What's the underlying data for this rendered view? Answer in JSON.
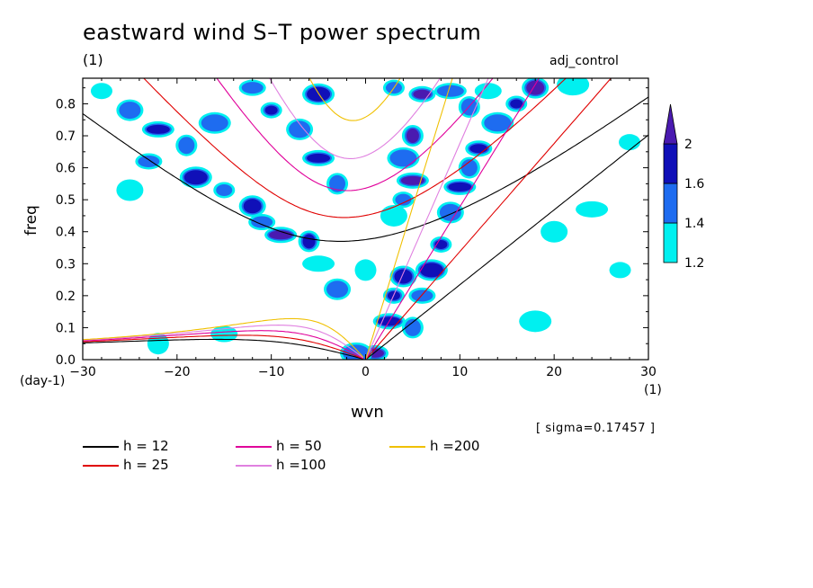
{
  "chart_data": {
    "type": "heatmap",
    "title": "eastward wind S–T power spectrum",
    "subtitle": "(1)",
    "run_label": "adj_control",
    "xlabel": "wvn",
    "xlabel_unit": "(1)",
    "ylabel": "freq",
    "ylabel_unit": "(day-1)",
    "annotation": "[ sigma=0.17457 ]",
    "xlim": [
      -30,
      30
    ],
    "ylim": [
      0,
      0.88
    ],
    "x_ticks": [
      -30,
      -20,
      -10,
      0,
      10,
      20,
      30
    ],
    "x_tick_labels": [
      "−30",
      "−20",
      "−10",
      "0",
      "10",
      "20",
      "30"
    ],
    "y_ticks": [
      0,
      0.1,
      0.2,
      0.3,
      0.4,
      0.5,
      0.6,
      0.7,
      0.8
    ],
    "y_tick_labels": [
      "0.0",
      "0.1",
      "0.2",
      "0.3",
      "0.4",
      "0.5",
      "0.6",
      "0.7",
      "0.8"
    ],
    "colorbar": {
      "levels": [
        1.2,
        1.4,
        1.6,
        2
      ],
      "level_labels": [
        "1.2",
        "1.4",
        "1.6",
        "2"
      ],
      "colors": [
        "#00f0f0",
        "#1e6cf0",
        "#1010b8",
        "#4a1ab0"
      ]
    },
    "series": [
      {
        "name": "h = 12",
        "color": "#000000",
        "h": 12
      },
      {
        "name": "h = 25",
        "color": "#e00000",
        "h": 25
      },
      {
        "name": "h = 50",
        "color": "#e0009a",
        "h": 50
      },
      {
        "name": "h =100",
        "color": "#e080e0",
        "h": 100
      },
      {
        "name": "h =200",
        "color": "#f0c000",
        "h": 200
      }
    ],
    "power_blobs": [
      {
        "x": -28,
        "y": 0.84,
        "level": 1.2
      },
      {
        "x": -25,
        "y": 0.78,
        "level": 1.4
      },
      {
        "x": -22,
        "y": 0.72,
        "level": 1.6
      },
      {
        "x": -19,
        "y": 0.67,
        "level": 1.4
      },
      {
        "x": -23,
        "y": 0.62,
        "level": 1.4
      },
      {
        "x": -18,
        "y": 0.57,
        "level": 1.6
      },
      {
        "x": -15,
        "y": 0.53,
        "level": 1.4
      },
      {
        "x": -12,
        "y": 0.48,
        "level": 1.6
      },
      {
        "x": -9,
        "y": 0.39,
        "level": 2.0
      },
      {
        "x": -6,
        "y": 0.37,
        "level": 1.6
      },
      {
        "x": -11,
        "y": 0.43,
        "level": 1.4
      },
      {
        "x": -16,
        "y": 0.74,
        "level": 1.4
      },
      {
        "x": -10,
        "y": 0.78,
        "level": 1.6
      },
      {
        "x": -7,
        "y": 0.72,
        "level": 1.4
      },
      {
        "x": -5,
        "y": 0.63,
        "level": 1.6
      },
      {
        "x": -3,
        "y": 0.55,
        "level": 1.4
      },
      {
        "x": -12,
        "y": 0.85,
        "level": 1.4
      },
      {
        "x": -5,
        "y": 0.83,
        "level": 1.6
      },
      {
        "x": 3,
        "y": 0.85,
        "level": 1.4
      },
      {
        "x": -3,
        "y": 0.22,
        "level": 1.4
      },
      {
        "x": -5,
        "y": 0.3,
        "level": 1.2
      },
      {
        "x": 0,
        "y": 0.28,
        "level": 1.2
      },
      {
        "x": 1,
        "y": 0.02,
        "level": 2.0
      },
      {
        "x": -1,
        "y": 0.02,
        "level": 1.4
      },
      {
        "x": 4,
        "y": 0.5,
        "level": 1.4
      },
      {
        "x": 3,
        "y": 0.45,
        "level": 1.2
      },
      {
        "x": 5,
        "y": 0.56,
        "level": 2.0
      },
      {
        "x": 5,
        "y": 0.7,
        "level": 2.0
      },
      {
        "x": 6,
        "y": 0.83,
        "level": 2.0
      },
      {
        "x": 4,
        "y": 0.63,
        "level": 1.4
      },
      {
        "x": 3,
        "y": 0.2,
        "level": 1.6
      },
      {
        "x": 4,
        "y": 0.26,
        "level": 1.6
      },
      {
        "x": 2.5,
        "y": 0.12,
        "level": 1.6
      },
      {
        "x": 5,
        "y": 0.1,
        "level": 1.4
      },
      {
        "x": 6,
        "y": 0.2,
        "level": 1.4
      },
      {
        "x": 7,
        "y": 0.28,
        "level": 1.6
      },
      {
        "x": 8,
        "y": 0.36,
        "level": 1.6
      },
      {
        "x": 9,
        "y": 0.46,
        "level": 1.4
      },
      {
        "x": 10,
        "y": 0.54,
        "level": 1.6
      },
      {
        "x": 11,
        "y": 0.6,
        "level": 1.4
      },
      {
        "x": 12,
        "y": 0.66,
        "level": 1.6
      },
      {
        "x": 14,
        "y": 0.74,
        "level": 1.4
      },
      {
        "x": 16,
        "y": 0.8,
        "level": 1.6
      },
      {
        "x": 18,
        "y": 0.85,
        "level": 2.0
      },
      {
        "x": 9,
        "y": 0.84,
        "level": 1.4
      },
      {
        "x": 11,
        "y": 0.79,
        "level": 1.4
      },
      {
        "x": 13,
        "y": 0.84,
        "level": 1.2
      },
      {
        "x": 22,
        "y": 0.86,
        "level": 1.2
      },
      {
        "x": 28,
        "y": 0.68,
        "level": 1.2
      },
      {
        "x": 20,
        "y": 0.4,
        "level": 1.2
      },
      {
        "x": 24,
        "y": 0.47,
        "level": 1.2
      },
      {
        "x": -22,
        "y": 0.05,
        "level": 1.2
      },
      {
        "x": -15,
        "y": 0.08,
        "level": 1.2
      },
      {
        "x": 18,
        "y": 0.12,
        "level": 1.2
      },
      {
        "x": 27,
        "y": 0.28,
        "level": 1.2
      },
      {
        "x": -25,
        "y": 0.53,
        "level": 1.2
      }
    ]
  },
  "legend_items": [
    {
      "label": "h = 12",
      "color": "#000000"
    },
    {
      "label": "h = 25",
      "color": "#e00000"
    },
    {
      "label": "h = 50",
      "color": "#e0009a"
    },
    {
      "label": "h =100",
      "color": "#e080e0"
    },
    {
      "label": "h =200",
      "color": "#f0c000"
    }
  ]
}
